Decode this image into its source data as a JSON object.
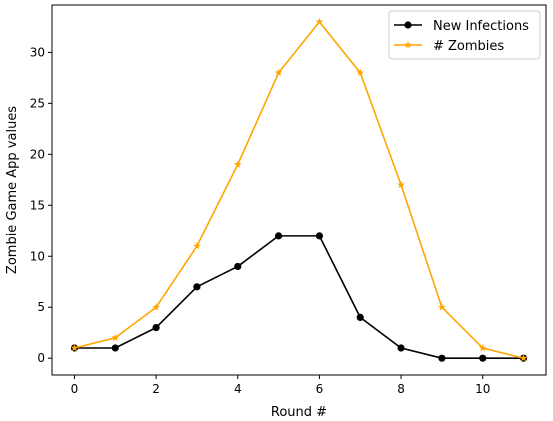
{
  "chart_data": {
    "type": "line",
    "xlabel": "Round #",
    "ylabel": "Zombie Game App values",
    "xlim": [
      -0.55,
      11.55
    ],
    "ylim": [
      -1.65,
      34.65
    ],
    "xticks": [
      0,
      2,
      4,
      6,
      8,
      10
    ],
    "yticks": [
      0,
      5,
      10,
      15,
      20,
      25,
      30
    ],
    "grid": false,
    "legend": "top-right",
    "x": [
      0,
      1,
      2,
      3,
      4,
      5,
      6,
      7,
      8,
      9,
      10,
      11
    ],
    "series": [
      {
        "name": "New Infections",
        "color": "#000000",
        "marker": "circle",
        "values": [
          1,
          1,
          3,
          7,
          9,
          12,
          12,
          4,
          1,
          0,
          0,
          0
        ]
      },
      {
        "name": "# Zombies",
        "color": "#FFA500",
        "marker": "star",
        "values": [
          1,
          2,
          5,
          11,
          19,
          28,
          33,
          28,
          17,
          5,
          1,
          0
        ]
      }
    ]
  }
}
